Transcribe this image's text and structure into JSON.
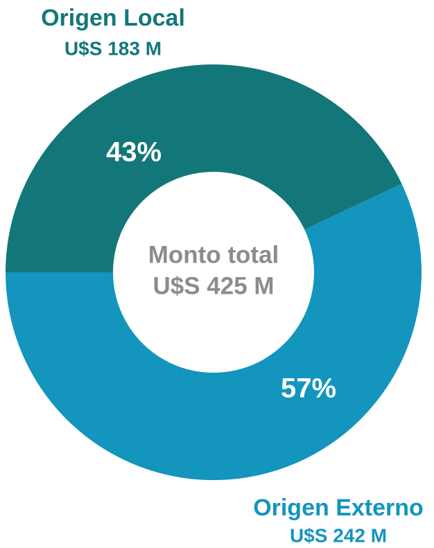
{
  "chart_data": {
    "type": "donut",
    "categories": [
      "Origen Local",
      "Origen Externo"
    ],
    "amounts": [
      "U$S 183 M",
      "U$S 242 M"
    ],
    "values": [
      43,
      57
    ],
    "value_labels": [
      "43%",
      "57%"
    ],
    "colors": [
      "#13777a",
      "#1395bd"
    ],
    "center_label": [
      "Monto total",
      "U$S 425 M"
    ]
  }
}
